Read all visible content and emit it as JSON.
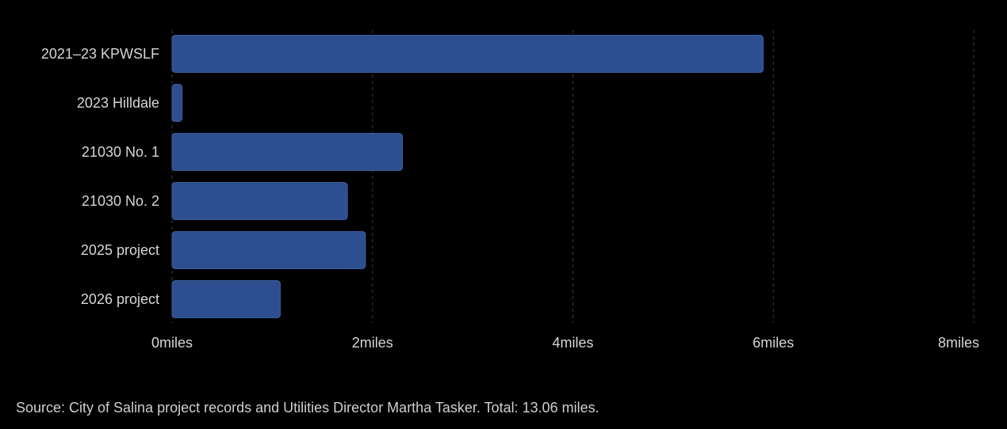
{
  "chart_data": {
    "type": "bar",
    "orientation": "horizontal",
    "categories": [
      "2021–23 KPWSLF",
      "2023 Hilldale",
      "21030 No. 1",
      "21030 No. 2",
      "2025 project",
      "2026 project"
    ],
    "values": [
      5.9,
      0.1,
      2.3,
      1.75,
      1.93,
      1.08
    ],
    "xlim": [
      0,
      8
    ],
    "x_ticks": [
      0,
      2,
      4,
      6,
      8
    ],
    "x_tick_labels": [
      "0miles",
      "2miles",
      "4miles",
      "6miles",
      "8miles"
    ],
    "grid": true,
    "bar_color": "#2d4f8f",
    "bar_border_color": "#3a5da0",
    "grid_color": "#3a3a3a"
  },
  "source_note": "Source: City of Salina project records and Utilities Director Martha Tasker. Total: 13.06 miles."
}
